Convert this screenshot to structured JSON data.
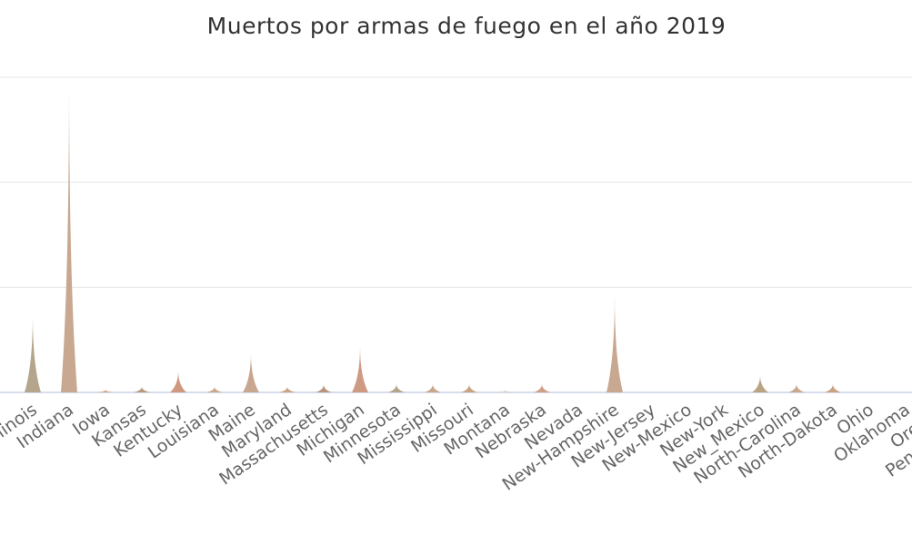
{
  "chart_data": {
    "type": "bar",
    "bar_shape": "pointed-triangle",
    "title": "Muertos por armas de fuego en el año 2019",
    "xlabel": "",
    "ylabel": "",
    "grid": true,
    "legend": "none",
    "ylim": [
      0,
      1200
    ],
    "categories": [
      "Illinois",
      "Indiana",
      "Iowa",
      "Kansas",
      "Kentucky",
      "Louisiana",
      "Maine",
      "Maryland",
      "Massachusetts",
      "Michigan",
      "Minnesota",
      "Mississippi",
      "Missouri",
      "Montana",
      "Nebraska",
      "Nevada",
      "New-Hampshire",
      "New-Jersey",
      "New-Mexico",
      "New-York",
      "New_Mexico",
      "North-Carolina",
      "North-Dakota",
      "Ohio",
      "Oklahoma",
      "Oregon",
      "Pennsylvania"
    ],
    "values": [
      295,
      1205,
      10,
      22,
      82,
      22,
      150,
      22,
      30,
      175,
      32,
      32,
      32,
      8,
      32,
      0,
      370,
      0,
      0,
      0,
      65,
      32,
      32,
      0,
      0,
      0,
      0
    ],
    "colors": [
      "#b4a58c",
      "#c8a890",
      "#d4a584",
      "#b69a80",
      "#cf9880",
      "#c9a88e",
      "#c9a690",
      "#c9a487",
      "#b7947f",
      "#cf9a84",
      "#b4a58c",
      "#c9a88e",
      "#c8a383",
      "#d7ccc8",
      "#cfa089",
      "#c9a88e",
      "#c8a890",
      "#c9a88e",
      "#c9a88e",
      "#c9a88e",
      "#b8a483",
      "#c9a88e",
      "#c8a383",
      "#c9a88e",
      "#c9a88e",
      "#c9a88e",
      "#c9a88e"
    ]
  }
}
